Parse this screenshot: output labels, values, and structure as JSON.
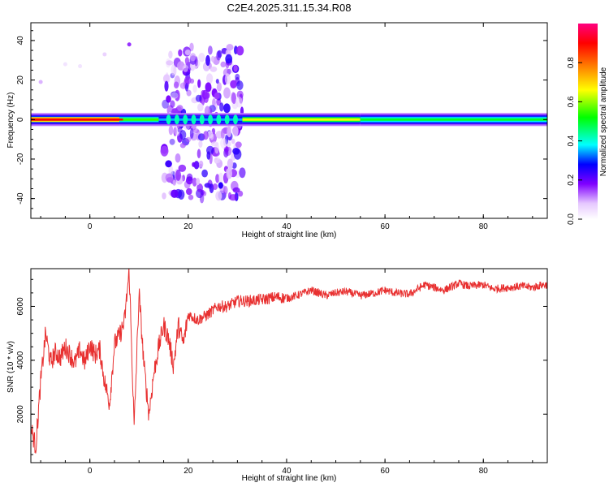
{
  "figure": {
    "title": "C2E4.2025.311.15.34.R08"
  },
  "chart_data": [
    {
      "type": "heatmap",
      "title": "C2E4.2025.311.15.34.R08",
      "xlabel": "Height of straight line (km)",
      "ylabel": "Frequency (Hz)",
      "xlim": [
        -12,
        93
      ],
      "ylim": [
        -50,
        49
      ],
      "xticks": [
        0,
        20,
        40,
        60,
        80
      ],
      "yticks": [
        -40,
        -20,
        0,
        20,
        40
      ],
      "grid": false,
      "colorbar": {
        "label": "Normalized spectral amplitude",
        "range": [
          0,
          1
        ],
        "ticks": [
          0.0,
          0.2,
          0.4,
          0.6,
          0.8
        ],
        "colors": [
          "#ffffff",
          "#e6c8ff",
          "#8000ff",
          "#0000ff",
          "#00ffff",
          "#00ff00",
          "#ffff00",
          "#ff8000",
          "#ff0000",
          "#ff0080"
        ]
      },
      "main_line": {
        "frequency": 0,
        "segments": [
          {
            "x": [
              -12,
              6
            ],
            "amplitude": 0.9
          },
          {
            "x": [
              6,
              14
            ],
            "amplitude": 0.55
          },
          {
            "x": [
              14,
              31
            ],
            "amplitude": 0.35
          },
          {
            "x": [
              31,
              55
            ],
            "amplitude": 0.65
          },
          {
            "x": [
              55,
              93
            ],
            "amplitude": 0.5
          }
        ]
      },
      "scatter_region": {
        "x": [
          15,
          31
        ],
        "frequency": [
          -40,
          38
        ],
        "amplitude": 0.2
      }
    },
    {
      "type": "line",
      "title": "",
      "xlabel": "Height of straight line (km)",
      "ylabel": "SNR (10 * v/v)",
      "xlim": [
        -12,
        93
      ],
      "ylim": [
        200,
        7400
      ],
      "xticks": [
        0,
        20,
        40,
        60,
        80
      ],
      "yticks": [
        2000,
        4000,
        6000
      ],
      "grid": false,
      "color": "#e83030",
      "x": [
        -12,
        -11,
        -10,
        -9,
        -8,
        -7,
        -6,
        -5,
        -4,
        -3,
        -2,
        -1,
        0,
        1,
        2,
        3,
        4,
        5,
        6,
        7,
        8,
        9,
        10,
        11,
        12,
        13,
        14,
        15,
        16,
        17,
        18,
        19,
        20,
        22,
        24,
        26,
        28,
        30,
        32,
        35,
        38,
        40,
        42,
        45,
        48,
        50,
        52,
        55,
        58,
        60,
        62,
        65,
        68,
        70,
        72,
        75,
        77,
        80,
        82,
        85,
        88,
        90,
        92,
        93
      ],
      "y": [
        1500,
        800,
        3200,
        5000,
        3900,
        4300,
        4100,
        4500,
        4200,
        3900,
        4400,
        3900,
        4600,
        4200,
        4400,
        3200,
        2400,
        4600,
        4900,
        5400,
        7300,
        1500,
        6500,
        3800,
        2000,
        3500,
        4500,
        5300,
        4800,
        3800,
        5300,
        4600,
        5700,
        5500,
        5700,
        6000,
        6000,
        6200,
        6200,
        6250,
        6350,
        6300,
        6400,
        6600,
        6400,
        6500,
        6550,
        6400,
        6500,
        6600,
        6500,
        6450,
        6800,
        6700,
        6600,
        6850,
        6750,
        6800,
        6650,
        6700,
        6750,
        6700,
        6800,
        6800
      ]
    }
  ]
}
